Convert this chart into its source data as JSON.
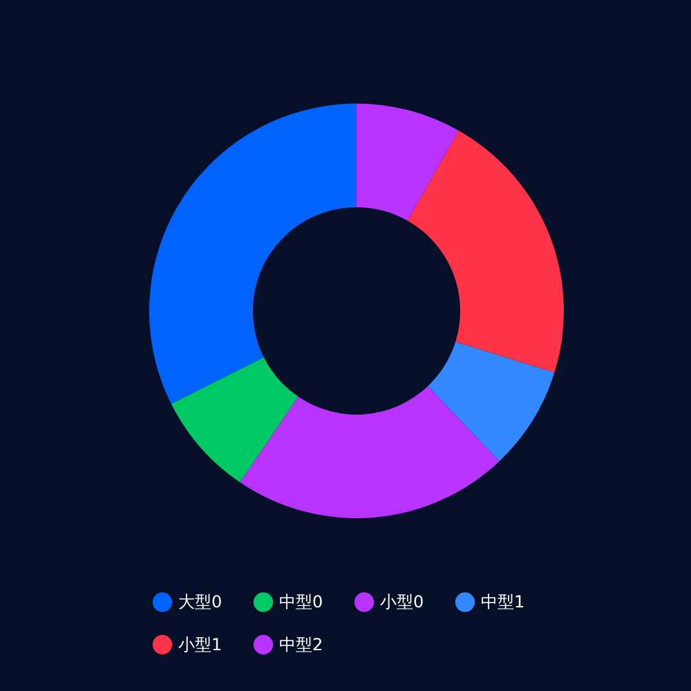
{
  "chart_data": {
    "type": "donut",
    "categories": [
      "大型0",
      "中型0",
      "小型0",
      "中型1",
      "小型1",
      "中型2"
    ],
    "values": [
      32.4,
      8.1,
      21.6,
      8.1,
      21.6,
      8.2
    ],
    "colors": [
      "#0062ff",
      "#00c864",
      "#b833ff",
      "#3388ff",
      "#ff3347",
      "#b833ff"
    ],
    "legend": "bottom"
  }
}
